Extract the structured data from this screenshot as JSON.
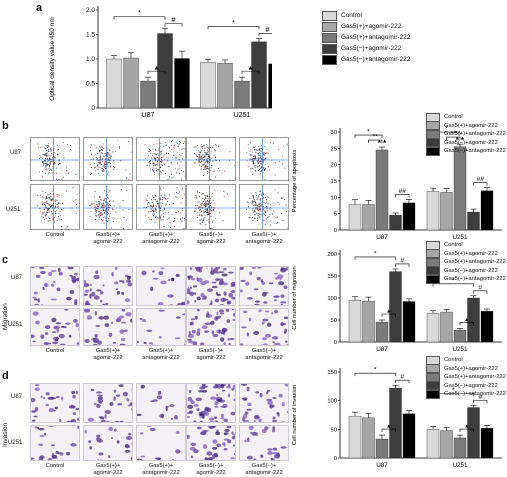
{
  "panels": {
    "a": {
      "label": "a"
    },
    "b": {
      "label": "b",
      "row_labels": [
        "U87",
        "U251"
      ],
      "col_labels": [
        "Control",
        "Gas5(+)+\nagomir-222",
        "Gas5(+)+\nantagomir-222",
        "Gas5(−)+\nagomir-222",
        "Gas5(−)+\nantagomir-222"
      ]
    },
    "c": {
      "label": "c",
      "side_label": "Migration",
      "row_labels": [
        "U87",
        "U251"
      ],
      "col_labels": [
        "Control",
        "Gas5(+)+\nagomir-222",
        "Gas5(+)+\nantagomir-222",
        "Gas5(−)+\nagomir-222",
        "Gas5(−)+\nantagomir-222"
      ]
    },
    "d": {
      "label": "d",
      "side_label": "Invasion",
      "row_labels": [
        "U87",
        "U251"
      ],
      "col_labels": [
        "Control",
        "Gas5(+)+\nagomir-222",
        "Gas5(+)+\nantagomir-222",
        "Gas5(−)+\nagomir-222",
        "Gas5(−)+\nantagomir-222"
      ]
    }
  },
  "legend": {
    "entries": [
      "Control",
      "Gas5(+)+agomir-222",
      "Gas5(+)+antagomir-222",
      "Gas5(−)+agomir-222",
      "Gas5(−)+antagomir-222"
    ],
    "colors": [
      "#d9d9d9",
      "#a6a6a6",
      "#7a7a7a",
      "#3d3d3d",
      "#000000"
    ]
  },
  "chart_data": [
    {
      "id": "a",
      "type": "bar",
      "categories": [
        "U87",
        "U251"
      ],
      "ylabel": "Optical density value 450 nm",
      "ylim": [
        0,
        2.0
      ],
      "yticks": [
        0,
        0.5,
        1.0,
        1.5,
        2.0
      ],
      "tick_labels": [
        "0",
        "0.5",
        "1.0",
        "1.5",
        "2.0"
      ],
      "series": [
        {
          "name": "Control",
          "values": [
            1.0,
            0.93
          ],
          "err": [
            0.07,
            0.06
          ]
        },
        {
          "name": "Gas5(+)+agomir-222",
          "values": [
            1.02,
            0.91
          ],
          "err": [
            0.11,
            0.07
          ]
        },
        {
          "name": "Gas5(+)+antagomir-222",
          "values": [
            0.55,
            0.55
          ],
          "err": [
            0.08,
            0.08
          ]
        },
        {
          "name": "Gas5(−)+agomir-222",
          "values": [
            1.52,
            1.35
          ],
          "err": [
            0.1,
            0.07
          ]
        },
        {
          "name": "Gas5(−)+antagomir-222",
          "values": [
            1.01,
            0.9
          ],
          "err": [
            0.15,
            0.06
          ]
        }
      ],
      "annotations": [
        "*",
        "#",
        "▲",
        "*",
        "#",
        "▲"
      ]
    },
    {
      "id": "b",
      "type": "bar",
      "categories": [
        "U87",
        "U251"
      ],
      "ylabel": "Percentage of apoptosis",
      "ylim": [
        0,
        30
      ],
      "yticks": [
        0,
        5,
        10,
        15,
        20,
        25,
        30
      ],
      "tick_labels": [
        "0",
        "5",
        "10",
        "15",
        "20",
        "25",
        "30"
      ],
      "series": [
        {
          "name": "Control",
          "values": [
            7.8,
            11.8
          ],
          "err": [
            1.5,
            1.0
          ]
        },
        {
          "name": "Gas5(+)+agomir-222",
          "values": [
            7.8,
            11.5
          ],
          "err": [
            1.3,
            1.2
          ]
        },
        {
          "name": "Gas5(+)+antagomir-222",
          "values": [
            24.5,
            25.5
          ],
          "err": [
            0.9,
            0.8
          ]
        },
        {
          "name": "Gas5(−)+agomir-222",
          "values": [
            4.5,
            5.5
          ],
          "err": [
            0.7,
            0.9
          ]
        },
        {
          "name": "Gas5(−)+antagomir-222",
          "values": [
            8.3,
            12.0
          ],
          "err": [
            1.1,
            1.0
          ]
        }
      ],
      "annotations": [
        "*",
        "**",
        "▲▲",
        "##",
        "*",
        "**",
        "▲▲",
        "##"
      ]
    },
    {
      "id": "c",
      "type": "bar",
      "categories": [
        "U87",
        "U251"
      ],
      "ylabel": "Cell number of migration",
      "ylim": [
        0,
        200
      ],
      "yticks": [
        0,
        50,
        100,
        150,
        200
      ],
      "tick_labels": [
        "0",
        "50",
        "100",
        "150",
        "200"
      ],
      "series": [
        {
          "name": "Control",
          "values": [
            95,
            65
          ],
          "err": [
            8,
            6
          ]
        },
        {
          "name": "Gas5(+)+agomir-222",
          "values": [
            93,
            68
          ],
          "err": [
            9,
            6
          ]
        },
        {
          "name": "Gas5(+)+antagomir-222",
          "values": [
            45,
            27
          ],
          "err": [
            5,
            4
          ]
        },
        {
          "name": "Gas5(−)+agomir-222",
          "values": [
            160,
            100
          ],
          "err": [
            6,
            5
          ]
        },
        {
          "name": "Gas5(−)+antagomir-222",
          "values": [
            92,
            70
          ],
          "err": [
            6,
            5
          ]
        }
      ],
      "annotations": [
        "*",
        "#",
        "▲",
        "*",
        "#",
        "▲"
      ]
    },
    {
      "id": "d",
      "type": "bar",
      "categories": [
        "U87",
        "U251"
      ],
      "ylabel": "Cell number of invasion",
      "ylim": [
        0,
        150
      ],
      "yticks": [
        0,
        50,
        100,
        150
      ],
      "tick_labels": [
        "0",
        "50",
        "100",
        "150"
      ],
      "series": [
        {
          "name": "Control",
          "values": [
            73,
            50
          ],
          "err": [
            7,
            5
          ]
        },
        {
          "name": "Gas5(+)+agomir-222",
          "values": [
            70,
            48
          ],
          "err": [
            8,
            5
          ]
        },
        {
          "name": "Gas5(+)+antagomir-222",
          "values": [
            33,
            35
          ],
          "err": [
            7,
            5
          ]
        },
        {
          "name": "Gas5(−)+agomir-222",
          "values": [
            122,
            88
          ],
          "err": [
            5,
            4
          ]
        },
        {
          "name": "Gas5(−)+antagomir-222",
          "values": [
            77,
            52
          ],
          "err": [
            6,
            5
          ]
        }
      ],
      "annotations": [
        "*",
        "#",
        "▲",
        "*",
        "#",
        "▲"
      ]
    }
  ]
}
